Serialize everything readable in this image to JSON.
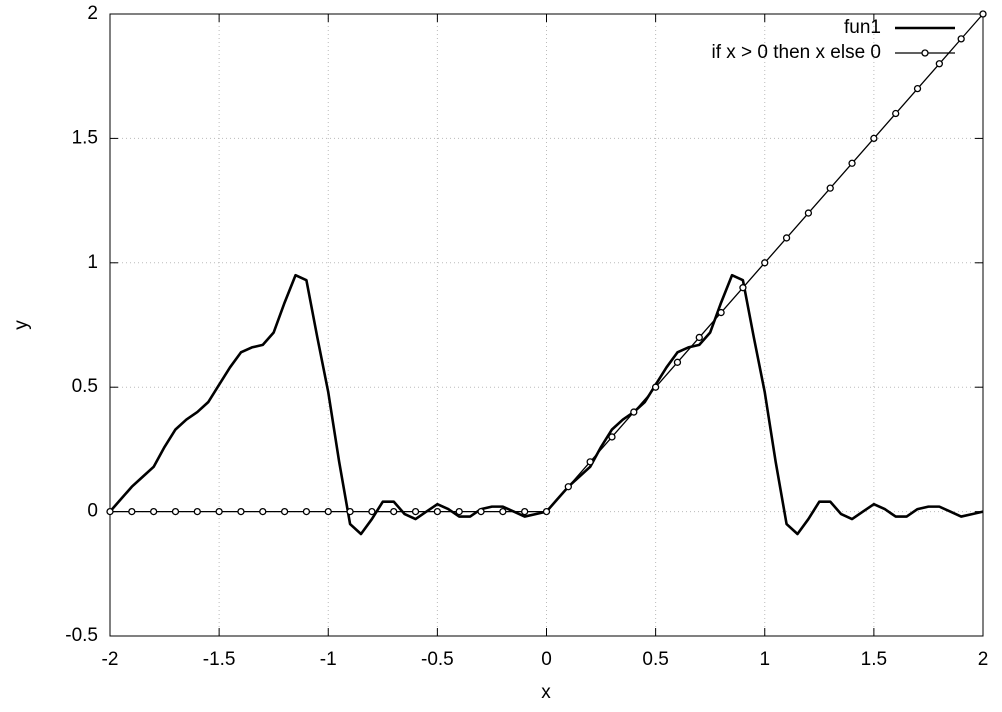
{
  "chart_data": {
    "type": "line",
    "xlabel": "x",
    "ylabel": "y",
    "xlim": [
      -2,
      2
    ],
    "ylim": [
      -0.5,
      2
    ],
    "xticks": [
      -2,
      -1.5,
      -1,
      -0.5,
      0,
      0.5,
      1,
      1.5,
      2
    ],
    "yticks": [
      -0.5,
      0,
      0.5,
      1,
      1.5,
      2
    ],
    "grid": true,
    "legend": "top-right",
    "series": [
      {
        "name": "fun1",
        "color": "#000000",
        "markers": false,
        "x": [
          -2,
          -1.95,
          -1.9,
          -1.85,
          -1.8,
          -1.75,
          -1.7,
          -1.65,
          -1.6,
          -1.55,
          -1.5,
          -1.45,
          -1.4,
          -1.35,
          -1.3,
          -1.25,
          -1.2,
          -1.15,
          -1.1,
          -1.05,
          -1,
          -0.95,
          -0.9,
          -0.85,
          -0.8,
          -0.75,
          -0.7,
          -0.65,
          -0.6,
          -0.55,
          -0.5,
          -0.45,
          -0.4,
          -0.35,
          -0.3,
          -0.25,
          -0.2,
          -0.15,
          -0.1,
          -0.05,
          0,
          0.05,
          0.1,
          0.15,
          0.2,
          0.25,
          0.3,
          0.35,
          0.4,
          0.45,
          0.5,
          0.55,
          0.6,
          0.65,
          0.7,
          0.75,
          0.8,
          0.85,
          0.9,
          0.95,
          1,
          1.05,
          1.1,
          1.15,
          1.2,
          1.25,
          1.3,
          1.35,
          1.4,
          1.45,
          1.5,
          1.55,
          1.6,
          1.65,
          1.7,
          1.75,
          1.8,
          1.85,
          1.9,
          1.95,
          2
        ],
        "values": [
          0,
          0.05,
          0.1,
          0.14,
          0.18,
          0.26,
          0.33,
          0.37,
          0.4,
          0.44,
          0.51,
          0.58,
          0.64,
          0.66,
          0.67,
          0.72,
          0.84,
          0.95,
          0.93,
          0.7,
          0.48,
          0.2,
          -0.05,
          -0.09,
          -0.03,
          0.04,
          0.04,
          -0.01,
          -0.03,
          0,
          0.03,
          0.01,
          -0.02,
          -0.02,
          0.01,
          0.02,
          0.02,
          0,
          -0.02,
          -0.01,
          0,
          0.05,
          0.1,
          0.14,
          0.18,
          0.26,
          0.33,
          0.37,
          0.4,
          0.44,
          0.51,
          0.58,
          0.64,
          0.66,
          0.67,
          0.72,
          0.84,
          0.95,
          0.93,
          0.7,
          0.48,
          0.2,
          -0.05,
          -0.09,
          -0.03,
          0.04,
          0.04,
          -0.01,
          -0.03,
          0,
          0.03,
          0.01,
          -0.02,
          -0.02,
          0.01,
          0.02,
          0.02,
          0,
          -0.02,
          -0.01,
          0
        ]
      },
      {
        "name": "if x > 0 then x else 0",
        "color": "#000000",
        "markers": true,
        "x": [
          -2,
          -1.9,
          -1.8,
          -1.7,
          -1.6,
          -1.5,
          -1.4,
          -1.3,
          -1.2,
          -1.1,
          -1,
          -0.9,
          -0.8,
          -0.7,
          -0.6,
          -0.5,
          -0.4,
          -0.3,
          -0.2,
          -0.1,
          0,
          0.1,
          0.2,
          0.3,
          0.4,
          0.5,
          0.6,
          0.7,
          0.8,
          0.9,
          1,
          1.1,
          1.2,
          1.3,
          1.4,
          1.5,
          1.6,
          1.7,
          1.8,
          1.9,
          2
        ],
        "values": [
          0,
          0,
          0,
          0,
          0,
          0,
          0,
          0,
          0,
          0,
          0,
          0,
          0,
          0,
          0,
          0,
          0,
          0,
          0,
          0,
          0,
          0.1,
          0.2,
          0.3,
          0.4,
          0.5,
          0.6,
          0.7,
          0.8,
          0.9,
          1,
          1.1,
          1.2,
          1.3,
          1.4,
          1.5,
          1.6,
          1.7,
          1.8,
          1.9,
          2
        ]
      }
    ]
  }
}
